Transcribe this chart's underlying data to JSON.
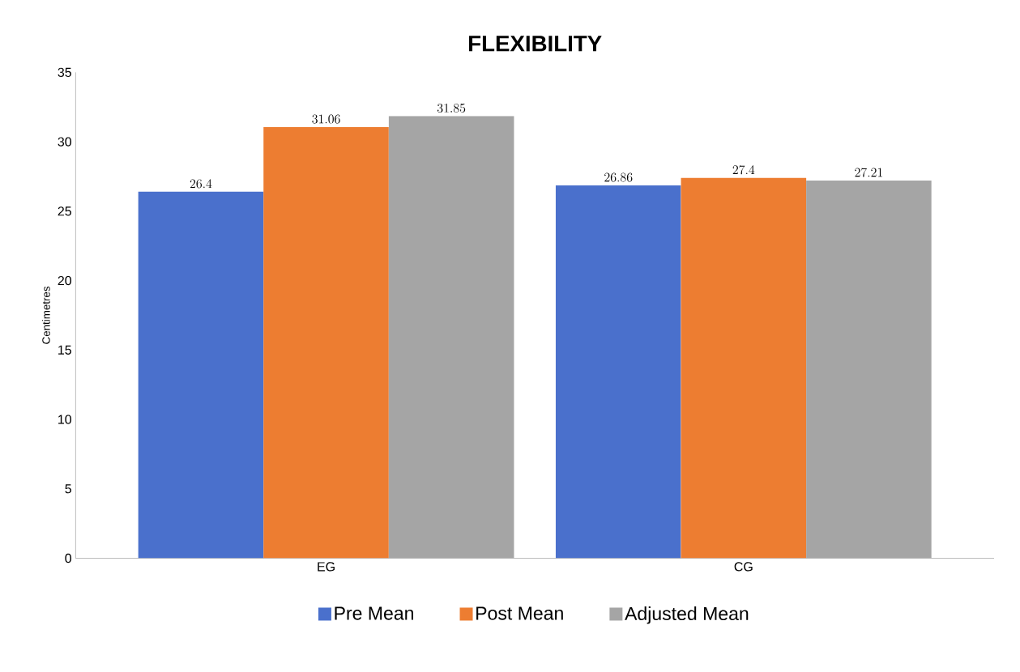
{
  "chart_data": {
    "type": "bar",
    "title": "FLEXIBILITY",
    "ylabel": "Centimetres",
    "categories": [
      "EG",
      "CG"
    ],
    "series": [
      {
        "name": "Pre Mean",
        "color": "#4a70cc",
        "values": [
          26.4,
          26.86
        ]
      },
      {
        "name": "Post Mean",
        "color": "#ed7d31",
        "values": [
          31.06,
          27.4
        ]
      },
      {
        "name": "Adjusted Mean",
        "color": "#a5a5a5",
        "values": [
          31.85,
          27.21
        ]
      }
    ],
    "ylim": [
      0,
      35
    ],
    "yticks": [
      0,
      5,
      10,
      15,
      20,
      25,
      30,
      35
    ],
    "data_labels": true,
    "legend": "bottom"
  }
}
